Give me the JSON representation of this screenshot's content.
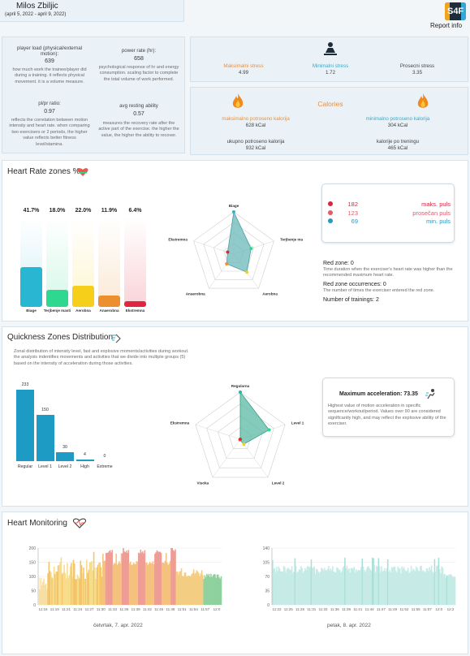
{
  "header": {
    "name": "Milos Zbiljic",
    "date_range": "(april 5, 2022 - april 9, 2022)",
    "logo_text": "S4F",
    "report_info": "Report info"
  },
  "metrics": {
    "player_load_title": "player load (physical/external motion):",
    "player_load_value": "639",
    "player_load_desc": "how much work the trainee/player did during a training. it reflects physical movement. it is a volume measure.",
    "power_rate_title": "power rate (hr):",
    "power_rate_value": "658",
    "power_rate_desc": "psychological response of hr and energy consumption. scaling factor to complete the total volume of work performed.",
    "pl_pr_title": "pl/pr ratio:",
    "pl_pr_value": "0.97",
    "pl_pr_desc": "reflects the correlation between motion intensity and heart rate. when comparing two exercisers or 2 periods, the higher value reflects better fitness level/stamina.",
    "avg_resting_title": "avg resting ability",
    "avg_resting_value": "0.57",
    "avg_resting_desc": "measures the recovery rate after the active part of the exercise. the higher the value, the higher the ability to recover."
  },
  "stress": {
    "max_label": "Maksimalni stress",
    "max_value": "4.99",
    "min_label": "Minimalni stress",
    "min_value": "1.72",
    "avg_label": "Prosecni stress",
    "avg_value": "3.35",
    "max_color": "#e98f3b",
    "min_color": "#3aa8c9"
  },
  "calories": {
    "title": "Calories",
    "max_label": "maksimalno potroseno kalorija",
    "max_value": "628 kCal",
    "min_label": "minimalno potroseno kalorija",
    "min_value": "304 kCal",
    "total_label": "ukupno potroseno kalorija",
    "total_value": "932 kCal",
    "per_training_label": "kalorije po treningu",
    "per_training_value": "465 kCal"
  },
  "hr_zones": {
    "title": "Heart Rate zones %",
    "zones": [
      {
        "name": "Biage",
        "percent": "41.7%",
        "value": 41.7,
        "color": "#29b6d2"
      },
      {
        "name": "Terjbenje masti",
        "percent": "18.0%",
        "value": 18.0,
        "color": "#2ed88e"
      },
      {
        "name": "Aerobna",
        "percent": "22.0%",
        "value": 22.0,
        "color": "#f5cf19"
      },
      {
        "name": "Anaerobna",
        "percent": "11.9%",
        "value": 11.9,
        "color": "#ec8f2f"
      },
      {
        "name": "Ekstremna",
        "percent": "6.4%",
        "value": 6.4,
        "color": "#e2253e"
      }
    ],
    "radar_labels": [
      "Biage",
      "Terjbenje masti",
      "Aerobna",
      "Anaerobna",
      "Ekstremna"
    ],
    "pulse": [
      {
        "value": "182",
        "label": "maks. puls",
        "color": "#d7263d"
      },
      {
        "value": "123",
        "label": "prosečan puls",
        "color": "#e35a6d"
      },
      {
        "value": "69",
        "label": "min. puls",
        "color": "#2a98c2"
      }
    ],
    "red_zone": "Red zone: 0",
    "red_zone_desc": "Time duration when the exerciser's heart rate was higher than the recommended maximum heart rate.",
    "red_zone_occ": "Red zone occurrences: 0",
    "red_zone_occ_desc": "The number of times the exerciser entered the red zone.",
    "trainings": "Number of trainings: 2"
  },
  "quickness": {
    "title": "Quickness Zones Distribution",
    "desc": "Zonal distribution of intensity level, fast and explosive moments/activities during workout. the analysis indentifies movements and activities that we divide into multiple groups (5) based on the intensity of acceleration during those activities.",
    "bars": [
      {
        "name": "Regular",
        "value": 233
      },
      {
        "name": "Level 1",
        "value": 150
      },
      {
        "name": "Level 2",
        "value": 30
      },
      {
        "name": "High",
        "value": 4
      },
      {
        "name": "Extreme",
        "value": 0
      }
    ],
    "radar_labels": [
      "Regularna",
      "Level 1",
      "Level 2",
      "Visoka",
      "Ekstremna"
    ],
    "max_acc_title": "Maximum acceleration: 73.35",
    "max_acc_desc": "Highest value of motion acceleration in specific sequence/workout/period. Values over 90 are considered significantly high, and may reflect the explosive ability of the exerciser."
  },
  "monitoring": {
    "title": "Heart Monitoring",
    "chart1": {
      "label": "četvrtak, 7. apr. 2022",
      "yticks": [
        "200",
        "150",
        "100",
        "50",
        "0"
      ],
      "xticks": [
        "11:16",
        "11:19",
        "11:21",
        "11:24",
        "11:27",
        "11:30",
        "11:33",
        "11:36",
        "11:39",
        "11:42",
        "11:45",
        "11:48",
        "11:51",
        "11:54",
        "11:57",
        "12:0"
      ]
    },
    "chart2": {
      "label": "petak, 8. apr. 2022",
      "yticks": [
        "140",
        "105",
        "70",
        "35",
        "0"
      ],
      "xticks": [
        "11:22",
        "11:25",
        "11:28",
        "11:31",
        "11:33",
        "11:36",
        "11:39",
        "11:41",
        "11:44",
        "11:47",
        "11:49",
        "11:52",
        "11:55",
        "11:57",
        "12:0",
        "12:2"
      ]
    }
  }
}
